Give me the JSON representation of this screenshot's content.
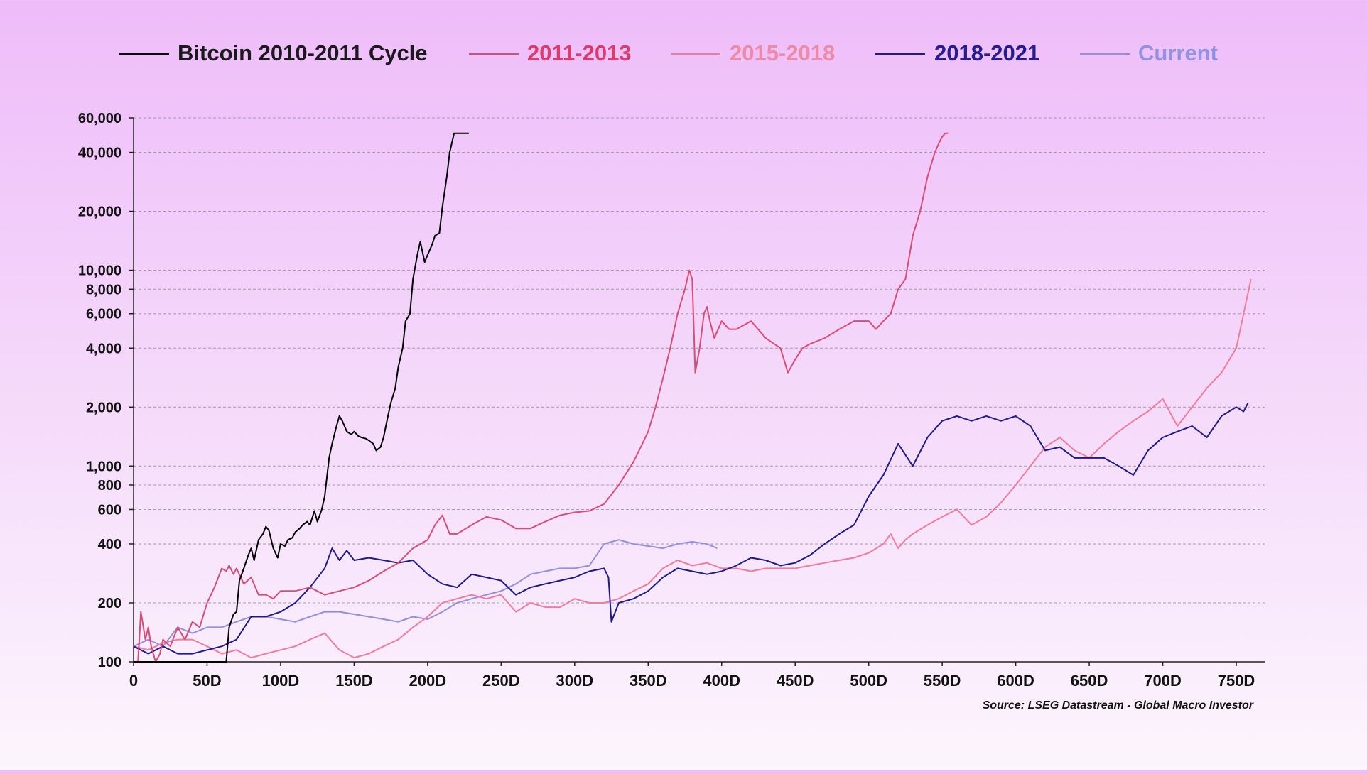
{
  "chart_data": {
    "type": "line",
    "title": "",
    "xlabel": "",
    "ylabel": "",
    "y_scale": "log",
    "xlim": [
      0,
      775
    ],
    "ylim": [
      100,
      60000
    ],
    "grid": "horizontal dashed at y ticks",
    "legend_position": "top",
    "source": "Source: LSEG Datastream - Global Macro Investor",
    "x_ticks": [
      {
        "value": 0,
        "label": "0"
      },
      {
        "value": 50,
        "label": "50D"
      },
      {
        "value": 100,
        "label": "100D"
      },
      {
        "value": 150,
        "label": "150D"
      },
      {
        "value": 200,
        "label": "200D"
      },
      {
        "value": 250,
        "label": "250D"
      },
      {
        "value": 300,
        "label": "300D"
      },
      {
        "value": 350,
        "label": "350D"
      },
      {
        "value": 400,
        "label": "400D"
      },
      {
        "value": 450,
        "label": "450D"
      },
      {
        "value": 500,
        "label": "500D"
      },
      {
        "value": 550,
        "label": "550D"
      },
      {
        "value": 600,
        "label": "600D"
      },
      {
        "value": 650,
        "label": "650D"
      },
      {
        "value": 700,
        "label": "700D"
      },
      {
        "value": 750,
        "label": "750D"
      }
    ],
    "y_ticks": [
      {
        "value": 100,
        "label": "100"
      },
      {
        "value": 200,
        "label": "200"
      },
      {
        "value": 400,
        "label": "400"
      },
      {
        "value": 600,
        "label": "600"
      },
      {
        "value": 800,
        "label": "800"
      },
      {
        "value": 1000,
        "label": "1,000"
      },
      {
        "value": 2000,
        "label": "2,000"
      },
      {
        "value": 4000,
        "label": "4,000"
      },
      {
        "value": 6000,
        "label": "6,000"
      },
      {
        "value": 8000,
        "label": "8,000"
      },
      {
        "value": 10000,
        "label": "10,000"
      },
      {
        "value": 20000,
        "label": "20,000"
      },
      {
        "value": 40000,
        "label": "40,000"
      },
      {
        "value": 60000,
        "label": "60,000"
      }
    ],
    "series": [
      {
        "name": "Bitcoin 2010-2011 Cycle",
        "color": "#000000",
        "legend_color": "#1a1a1a",
        "x": [
          0,
          5,
          10,
          15,
          20,
          25,
          30,
          35,
          40,
          45,
          50,
          52,
          55,
          58,
          60,
          63,
          65,
          68,
          70,
          72,
          75,
          78,
          80,
          82,
          85,
          88,
          90,
          92,
          95,
          98,
          100,
          103,
          105,
          108,
          110,
          113,
          115,
          118,
          120,
          123,
          125,
          128,
          130,
          133,
          135,
          138,
          140,
          142,
          145,
          148,
          150,
          153,
          155,
          158,
          160,
          163,
          165,
          168,
          170,
          173,
          175,
          178,
          180,
          183,
          185,
          188,
          190,
          193,
          195,
          198,
          200,
          203,
          205,
          208,
          210,
          213,
          215,
          218,
          220,
          223,
          225,
          227,
          228
        ],
        "y": [
          100,
          100,
          100,
          100,
          100,
          100,
          100,
          100,
          100,
          100,
          100,
          100,
          100,
          100,
          100,
          100,
          150,
          175,
          180,
          260,
          300,
          350,
          380,
          330,
          420,
          450,
          490,
          470,
          380,
          340,
          400,
          390,
          420,
          430,
          460,
          480,
          500,
          520,
          500,
          590,
          520,
          600,
          700,
          1100,
          1300,
          1600,
          1800,
          1700,
          1500,
          1450,
          1500,
          1420,
          1400,
          1380,
          1350,
          1300,
          1200,
          1250,
          1400,
          1800,
          2100,
          2500,
          3200,
          4000,
          5500,
          6000,
          9000,
          12000,
          14000,
          11000,
          12000,
          13500,
          15000,
          15500,
          21000,
          30000,
          40000,
          50000,
          50000,
          50000,
          50000,
          50000,
          50000
        ]
      },
      {
        "name": "2011-2013",
        "color": "#d94c74",
        "legend_color": "#dd3c6a",
        "x": [
          0,
          3,
          5,
          8,
          10,
          12,
          15,
          18,
          20,
          25,
          30,
          35,
          40,
          45,
          50,
          55,
          60,
          63,
          65,
          68,
          70,
          75,
          80,
          85,
          90,
          95,
          100,
          110,
          120,
          130,
          140,
          150,
          160,
          170,
          180,
          190,
          200,
          205,
          210,
          215,
          220,
          230,
          240,
          250,
          260,
          270,
          280,
          290,
          300,
          310,
          320,
          330,
          340,
          345,
          350,
          355,
          360,
          365,
          370,
          375,
          378,
          380,
          382,
          385,
          388,
          390,
          392,
          395,
          400,
          405,
          410,
          420,
          430,
          440,
          445,
          450,
          455,
          460,
          470,
          480,
          490,
          500,
          505,
          510,
          515,
          520,
          525,
          530,
          535,
          540,
          545,
          548,
          550,
          552,
          554
        ],
        "y": [
          100,
          100,
          180,
          130,
          150,
          120,
          100,
          110,
          130,
          120,
          150,
          130,
          160,
          150,
          200,
          240,
          300,
          290,
          310,
          280,
          300,
          250,
          270,
          220,
          220,
          210,
          230,
          230,
          240,
          220,
          230,
          240,
          260,
          290,
          320,
          380,
          420,
          500,
          560,
          450,
          450,
          500,
          550,
          530,
          480,
          480,
          520,
          560,
          580,
          590,
          640,
          800,
          1050,
          1250,
          1500,
          2000,
          2800,
          4000,
          6000,
          8000,
          10000,
          9000,
          3000,
          4000,
          6000,
          6500,
          5500,
          4500,
          5500,
          5000,
          5000,
          5500,
          4500,
          4000,
          3000,
          3500,
          4000,
          4200,
          4500,
          5000,
          5500,
          5500,
          5000,
          5500,
          6000,
          8000,
          9000,
          15000,
          20000,
          30000,
          40000,
          45000,
          48000,
          50000,
          50000
        ]
      },
      {
        "name": "2015-2018",
        "color": "#f07c9a",
        "legend_color": "#ee8aa3",
        "x": [
          0,
          10,
          20,
          30,
          40,
          50,
          60,
          70,
          80,
          90,
          100,
          110,
          120,
          130,
          140,
          150,
          160,
          170,
          180,
          190,
          200,
          210,
          220,
          230,
          240,
          250,
          260,
          270,
          280,
          290,
          300,
          310,
          320,
          330,
          340,
          350,
          360,
          370,
          380,
          390,
          400,
          410,
          420,
          430,
          440,
          450,
          460,
          470,
          480,
          490,
          500,
          510,
          515,
          520,
          525,
          530,
          540,
          550,
          560,
          570,
          580,
          590,
          600,
          610,
          620,
          630,
          640,
          650,
          660,
          670,
          680,
          690,
          700,
          710,
          720,
          730,
          740,
          750,
          755,
          760
        ],
        "y": [
          120,
          115,
          125,
          130,
          130,
          120,
          110,
          115,
          105,
          110,
          115,
          120,
          130,
          140,
          115,
          105,
          110,
          120,
          130,
          150,
          170,
          200,
          210,
          220,
          210,
          220,
          180,
          200,
          190,
          190,
          210,
          200,
          200,
          210,
          230,
          250,
          300,
          330,
          310,
          320,
          300,
          300,
          290,
          300,
          300,
          300,
          310,
          320,
          330,
          340,
          360,
          400,
          450,
          380,
          420,
          450,
          500,
          550,
          600,
          500,
          550,
          650,
          800,
          1000,
          1250,
          1400,
          1200,
          1100,
          1300,
          1500,
          1700,
          1900,
          2200,
          1600,
          2000,
          2500,
          3000,
          4000,
          6000,
          9000
        ]
      },
      {
        "name": "2018-2021",
        "color": "#1c1a8c",
        "legend_color": "#241c95",
        "x": [
          0,
          10,
          20,
          30,
          40,
          50,
          60,
          70,
          80,
          90,
          100,
          110,
          120,
          130,
          135,
          140,
          145,
          150,
          160,
          170,
          180,
          190,
          200,
          210,
          220,
          230,
          240,
          250,
          260,
          270,
          280,
          290,
          300,
          310,
          320,
          323,
          325,
          330,
          340,
          350,
          360,
          370,
          380,
          390,
          400,
          410,
          420,
          430,
          440,
          450,
          460,
          470,
          480,
          490,
          500,
          510,
          520,
          530,
          540,
          550,
          560,
          570,
          580,
          590,
          600,
          610,
          620,
          630,
          640,
          650,
          660,
          670,
          680,
          690,
          700,
          710,
          720,
          730,
          740,
          750,
          755,
          758
        ],
        "y": [
          120,
          110,
          120,
          110,
          110,
          115,
          120,
          130,
          170,
          170,
          180,
          200,
          240,
          300,
          380,
          330,
          370,
          330,
          340,
          330,
          320,
          330,
          280,
          250,
          240,
          280,
          270,
          260,
          220,
          240,
          250,
          260,
          270,
          290,
          300,
          270,
          160,
          200,
          210,
          230,
          270,
          300,
          290,
          280,
          290,
          310,
          340,
          330,
          310,
          320,
          350,
          400,
          450,
          500,
          700,
          900,
          1300,
          1000,
          1400,
          1700,
          1800,
          1700,
          1800,
          1700,
          1800,
          1600,
          1200,
          1250,
          1100,
          1100,
          1100,
          1000,
          900,
          1200,
          1400,
          1500,
          1600,
          1400,
          1800,
          2000,
          1900,
          2100
        ]
      },
      {
        "name": "Current",
        "color": "#9090dc",
        "legend_color": "#8f93e2",
        "x": [
          0,
          10,
          20,
          30,
          40,
          50,
          60,
          70,
          80,
          90,
          100,
          110,
          120,
          130,
          140,
          150,
          160,
          170,
          180,
          190,
          200,
          210,
          220,
          230,
          240,
          250,
          260,
          270,
          280,
          290,
          300,
          310,
          320,
          330,
          340,
          350,
          360,
          370,
          380,
          390,
          397
        ],
        "y": [
          120,
          130,
          120,
          150,
          140,
          150,
          150,
          160,
          170,
          170,
          165,
          160,
          170,
          180,
          180,
          175,
          170,
          165,
          160,
          170,
          165,
          180,
          200,
          210,
          220,
          230,
          250,
          280,
          290,
          300,
          300,
          310,
          400,
          420,
          400,
          390,
          380,
          400,
          410,
          400,
          380
        ]
      }
    ]
  }
}
